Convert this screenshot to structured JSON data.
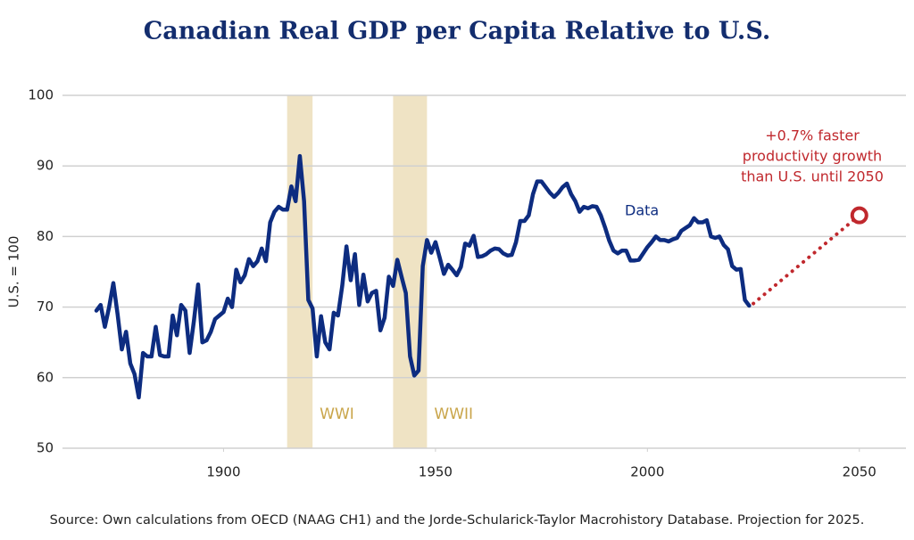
{
  "chart_data": {
    "type": "line",
    "title": "Canadian Real GDP per Capita Relative to U.S.",
    "y_label": "U.S. = 100",
    "source": "Source: Own calculations from OECD (NAAG CH1) and the Jorde-Schularick-Taylor Macrohistory Database. Projection for 2025.",
    "xlim": [
      1862,
      2061
    ],
    "ylim": [
      50,
      100
    ],
    "xticks": [
      1900,
      1950,
      2000,
      2050
    ],
    "yticks": [
      50,
      60,
      70,
      80,
      90,
      100
    ],
    "grid": true,
    "spans": [
      {
        "label": "WWI",
        "start": 1915,
        "end": 1921,
        "color": "#efe3c4"
      },
      {
        "label": "WWII",
        "start": 1940,
        "end": 1948,
        "color": "#efe3c4"
      }
    ],
    "series": [
      {
        "name": "Data",
        "color": "#0d2c80",
        "style": "solid",
        "x": [
          1870,
          1871,
          1872,
          1873,
          1874,
          1875,
          1876,
          1877,
          1878,
          1879,
          1880,
          1881,
          1882,
          1883,
          1884,
          1885,
          1886,
          1887,
          1888,
          1889,
          1890,
          1891,
          1892,
          1893,
          1894,
          1895,
          1896,
          1897,
          1898,
          1899,
          1900,
          1901,
          1902,
          1903,
          1904,
          1905,
          1906,
          1907,
          1908,
          1909,
          1910,
          1911,
          1912,
          1913,
          1914,
          1915,
          1916,
          1917,
          1918,
          1919,
          1920,
          1921,
          1922,
          1923,
          1924,
          1925,
          1926,
          1927,
          1928,
          1929,
          1930,
          1931,
          1932,
          1933,
          1934,
          1935,
          1936,
          1937,
          1938,
          1939,
          1940,
          1941,
          1942,
          1943,
          1944,
          1945,
          1946,
          1947,
          1948,
          1949,
          1950,
          1951,
          1952,
          1953,
          1954,
          1955,
          1956,
          1957,
          1958,
          1959,
          1960,
          1961,
          1962,
          1963,
          1964,
          1965,
          1966,
          1967,
          1968,
          1969,
          1970,
          1971,
          1972,
          1973,
          1974,
          1975,
          1976,
          1977,
          1978,
          1979,
          1980,
          1981,
          1982,
          1983,
          1984,
          1985,
          1986,
          1987,
          1988,
          1989,
          1990,
          1991,
          1992,
          1993,
          1994,
          1995,
          1996,
          1997,
          1998,
          1999,
          2000,
          2001,
          2002,
          2003,
          2004,
          2005,
          2006,
          2007,
          2008,
          2009,
          2010,
          2011,
          2012,
          2013,
          2014,
          2015,
          2016,
          2017,
          2018,
          2019,
          2020,
          2021,
          2022,
          2023,
          2024
        ],
        "values": [
          69.5,
          70.3,
          67.2,
          70,
          73.4,
          69,
          64,
          66.5,
          62,
          60.5,
          57.2,
          63.5,
          63,
          63,
          67.2,
          63.2,
          63,
          63,
          68.8,
          66,
          70.3,
          69.5,
          63.5,
          68,
          73.2,
          65,
          65.3,
          66.5,
          68.3,
          68.8,
          69.3,
          71.2,
          70,
          75.3,
          73.5,
          74.5,
          76.8,
          75.8,
          76.5,
          78.3,
          76.5,
          82,
          83.5,
          84.2,
          83.8,
          83.8,
          87.1,
          85,
          91.4,
          85,
          71,
          69.8,
          63,
          68.7,
          65,
          64,
          69.2,
          68.8,
          73,
          78.6,
          73.8,
          77.5,
          70.3,
          74.6,
          70.8,
          72,
          72.3,
          66.7,
          68.5,
          74.3,
          73,
          76.7,
          74.3,
          72,
          63,
          60.3,
          61,
          75.8,
          79.5,
          77.7,
          79.2,
          77,
          74.7,
          76,
          75.3,
          74.5,
          75.7,
          79,
          78.7,
          80.1,
          77.1,
          77.2,
          77.5,
          78,
          78.3,
          78.2,
          77.6,
          77.3,
          77.4,
          79.2,
          82.2,
          82.2,
          83,
          86,
          87.8,
          87.8,
          87,
          86.2,
          85.6,
          86.2,
          87,
          87.5,
          86,
          85,
          83.5,
          84.2,
          84,
          84.3,
          84.2,
          83,
          81.3,
          79.4,
          78,
          77.6,
          78,
          78,
          76.6,
          76.6,
          76.7,
          77.6,
          78.5,
          79.2,
          80,
          79.5,
          79.5,
          79.3,
          79.6,
          79.8,
          80.8,
          81.2,
          81.6,
          82.6,
          82,
          82,
          82.3,
          80,
          79.8,
          80,
          78.8,
          78.2,
          75.8,
          75.3,
          75.4,
          71,
          70.2
        ]
      },
      {
        "name": "+0.7% faster productivity growth than U.S. until 2050",
        "color": "#c0282d",
        "style": "dotted",
        "x": [
          2025,
          2050
        ],
        "values": [
          70.5,
          83
        ]
      }
    ],
    "annotation_lines": [
      "+0.7% faster",
      "productivity growth",
      "than U.S. until 2050"
    ]
  }
}
